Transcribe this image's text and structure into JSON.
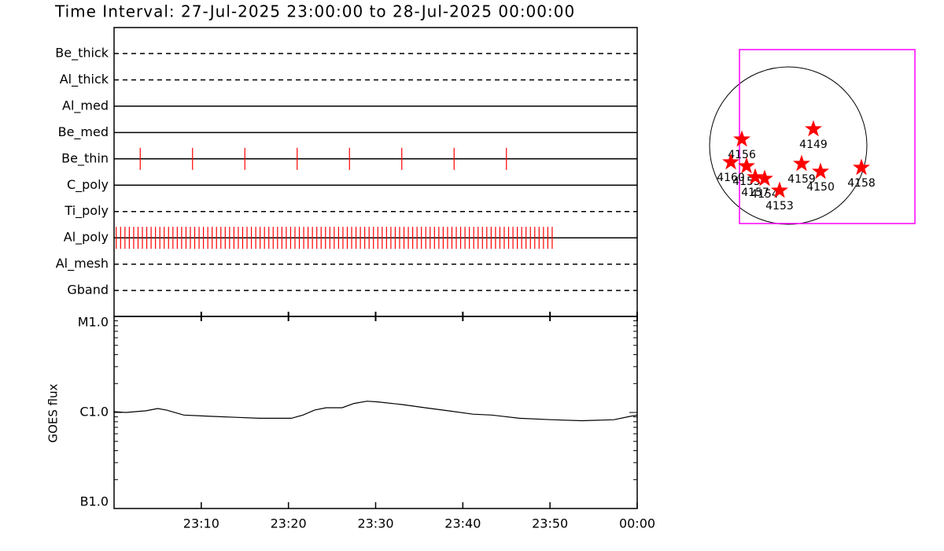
{
  "chart_data": [
    {
      "type": "timeline",
      "title": "Time Interval: 27-Jul-2025 23:00:00 to 28-Jul-2025 00:00:00",
      "xlim": [
        "23:00",
        "00:00"
      ],
      "event_color": "#ff0000",
      "rows": [
        {
          "label": "Be_thick",
          "style": "dashed",
          "x": []
        },
        {
          "label": "Al_thick",
          "style": "dashed",
          "x": []
        },
        {
          "label": "Al_med",
          "style": "solid",
          "x": []
        },
        {
          "label": "Be_med",
          "style": "solid",
          "x": []
        },
        {
          "label": "Be_thin",
          "style": "solid",
          "x": [
            "23:03:00",
            "23:09:00",
            "23:15:00",
            "23:21:00",
            "23:27:00",
            "23:33:00",
            "23:39:00",
            "23:45:00"
          ]
        },
        {
          "label": "C_poly",
          "style": "solid",
          "x": []
        },
        {
          "label": "Ti_poly",
          "style": "dashed",
          "x": []
        },
        {
          "label": "Al_poly",
          "style": "solid",
          "x": [
            "23:00:15",
            "23:00:45",
            "23:01:15",
            "23:01:45",
            "23:02:15",
            "23:02:45",
            "23:03:15",
            "23:03:45",
            "23:04:15",
            "23:04:45",
            "23:05:15",
            "23:05:45",
            "23:06:15",
            "23:06:45",
            "23:07:15",
            "23:07:45",
            "23:08:15",
            "23:08:45",
            "23:09:15",
            "23:09:45",
            "23:10:15",
            "23:10:45",
            "23:11:15",
            "23:11:45",
            "23:12:15",
            "23:12:45",
            "23:13:15",
            "23:13:45",
            "23:14:15",
            "23:14:45",
            "23:15:15",
            "23:15:45",
            "23:16:15",
            "23:16:45",
            "23:17:15",
            "23:17:45",
            "23:18:15",
            "23:18:45",
            "23:19:15",
            "23:19:45",
            "23:20:15",
            "23:20:45",
            "23:21:15",
            "23:21:45",
            "23:22:15",
            "23:22:45",
            "23:23:15",
            "23:23:45",
            "23:24:15",
            "23:24:45",
            "23:25:15",
            "23:25:45",
            "23:26:15",
            "23:26:45",
            "23:27:15",
            "23:27:45",
            "23:28:15",
            "23:28:45",
            "23:29:15",
            "23:29:45",
            "23:30:15",
            "23:30:45",
            "23:31:15",
            "23:31:45",
            "23:32:15",
            "23:32:45",
            "23:33:15",
            "23:33:45",
            "23:34:15",
            "23:34:45",
            "23:35:15",
            "23:35:45",
            "23:36:15",
            "23:36:45",
            "23:37:15",
            "23:37:45",
            "23:38:15",
            "23:38:45",
            "23:39:15",
            "23:39:45",
            "23:40:15",
            "23:40:45",
            "23:41:15",
            "23:41:45",
            "23:42:15",
            "23:42:45",
            "23:43:15",
            "23:43:45",
            "23:44:15",
            "23:44:45",
            "23:45:15",
            "23:45:45",
            "23:46:15",
            "23:46:45",
            "23:47:15",
            "23:47:45",
            "23:48:15",
            "23:48:45",
            "23:49:15",
            "23:49:45",
            "23:50:15"
          ]
        },
        {
          "label": "Al_mesh",
          "style": "dashed",
          "x": []
        },
        {
          "label": "Gband",
          "style": "dashed",
          "x": []
        }
      ]
    },
    {
      "type": "line",
      "ylabel": "GOES flux",
      "log": true,
      "color": "#000000",
      "xlim": [
        "23:00",
        "00:00"
      ],
      "xticks": [
        "23:10",
        "23:20",
        "23:30",
        "23:40",
        "23:50",
        "00:00"
      ],
      "ylim": [
        1e-07,
        1e-05
      ],
      "yticks": [
        {
          "value": 1e-07,
          "label": "B1.0"
        },
        {
          "value": 1e-06,
          "label": "C1.0"
        },
        {
          "value": 1e-05,
          "label": "M1.0"
        }
      ],
      "x": [
        "23:00:00",
        "23:01:20",
        "23:03:40",
        "23:05:00",
        "23:06:00",
        "23:08:00",
        "23:11:20",
        "23:14:00",
        "23:16:40",
        "23:20:20",
        "23:21:40",
        "23:23:00",
        "23:24:20",
        "23:26:10",
        "23:27:30",
        "23:29:00",
        "23:30:10",
        "23:33:00",
        "23:35:40",
        "23:38:20",
        "23:41:10",
        "23:43:20",
        "23:46:30",
        "23:50:10",
        "23:53:40",
        "23:57:20",
        "23:59:10",
        "00:00:00"
      ],
      "values": [
        1.02e-06,
        1e-06,
        1.04e-06,
        1.1e-06,
        1.06e-06,
        9.4e-07,
        9.1e-07,
        8.9e-07,
        8.7e-07,
        8.7e-07,
        9.4e-07,
        1.06e-06,
        1.12e-06,
        1.12e-06,
        1.24e-06,
        1.31e-06,
        1.29e-06,
        1.21e-06,
        1.12e-06,
        1.04e-06,
        9.6e-07,
        9.4e-07,
        8.7e-07,
        8.4e-07,
        8.2e-07,
        8.4e-07,
        9.1e-07,
        9.4e-07
      ]
    },
    {
      "type": "scatter",
      "radius": 960,
      "color": "#ff0000",
      "fov_color": "#ff00ff",
      "fov_x": [
        -595,
        1546
      ],
      "fov_y": [
        -950,
        1171
      ],
      "labels": [
        "4156",
        "4160",
        "4155",
        "4157",
        "4154",
        "4153",
        "4159",
        "4150",
        "4149",
        "4158"
      ],
      "x": [
        -566,
        -701,
        -509,
        -403,
        -288,
        -106,
        163,
        394,
        307,
        893
      ],
      "y": [
        77,
        -202,
        -250,
        -384,
        -403,
        -547,
        -221,
        -317,
        202,
        -269
      ]
    }
  ]
}
